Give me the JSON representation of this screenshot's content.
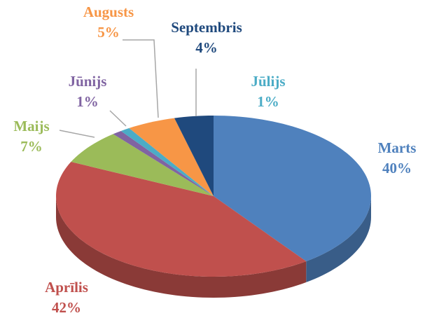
{
  "chart_data": {
    "type": "pie",
    "categories": [
      "Marts",
      "Aprīlis",
      "Maijs",
      "Jūnijs",
      "Jūlijs",
      "Augusts",
      "Septembris"
    ],
    "values": [
      40,
      42,
      7,
      1,
      1,
      5,
      4
    ],
    "value_labels": [
      "40%",
      "42%",
      "7%",
      "1%",
      "1%",
      "5%",
      "4%"
    ],
    "colors": [
      "#4f81bd",
      "#c0504d",
      "#9bbb59",
      "#8064a2",
      "#4bacc6",
      "#f79646",
      "#1f497d"
    ]
  }
}
